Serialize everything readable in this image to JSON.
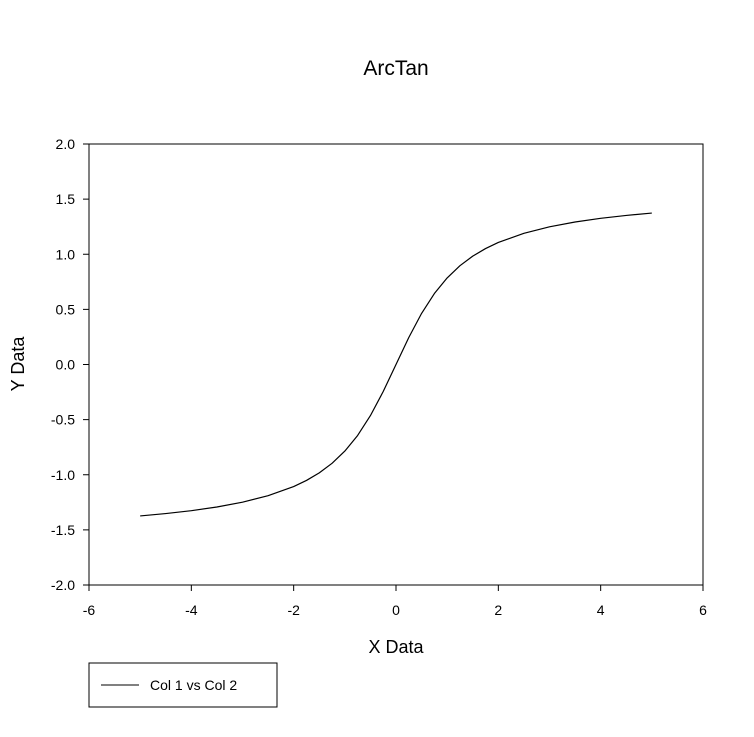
{
  "chart_data": {
    "type": "line",
    "title": "ArcTan",
    "xlabel": "X Data",
    "ylabel": "Y Data",
    "xlim": [
      -6,
      6
    ],
    "ylim": [
      -2.0,
      2.0
    ],
    "xticks": [
      -6,
      -4,
      -2,
      0,
      2,
      4,
      6
    ],
    "xtick_labels": [
      "-6",
      "-4",
      "-2",
      "0",
      "2",
      "4",
      "6"
    ],
    "yticks": [
      2.0,
      1.5,
      1.0,
      0.5,
      0.0,
      -0.5,
      -1.0,
      -1.5,
      -2.0
    ],
    "ytick_labels": [
      "2.0",
      "1.5",
      "1.0",
      "0.5",
      "0.0",
      "-0.5",
      "-1.0",
      "-1.5",
      "-2.0"
    ],
    "grid": false,
    "legend_position": "bottom-left",
    "series": [
      {
        "name": "Col 1 vs Col 2",
        "color": "#000000",
        "x": [
          -5.0,
          -4.5,
          -4.0,
          -3.5,
          -3.0,
          -2.5,
          -2.0,
          -1.75,
          -1.5,
          -1.25,
          -1.0,
          -0.75,
          -0.5,
          -0.25,
          0.0,
          0.25,
          0.5,
          0.75,
          1.0,
          1.25,
          1.5,
          1.75,
          2.0,
          2.5,
          3.0,
          3.5,
          4.0,
          4.5,
          5.0
        ],
        "y": [
          -1.3734,
          -1.3521,
          -1.3258,
          -1.2925,
          -1.249,
          -1.1903,
          -1.1071,
          -1.0517,
          -0.9828,
          -0.8961,
          -0.7854,
          -0.6435,
          -0.4636,
          -0.245,
          0.0,
          0.245,
          0.4636,
          0.6435,
          0.7854,
          0.8961,
          0.9828,
          1.0517,
          1.1071,
          1.1903,
          1.249,
          1.2925,
          1.3258,
          1.3521,
          1.3734
        ]
      }
    ]
  }
}
